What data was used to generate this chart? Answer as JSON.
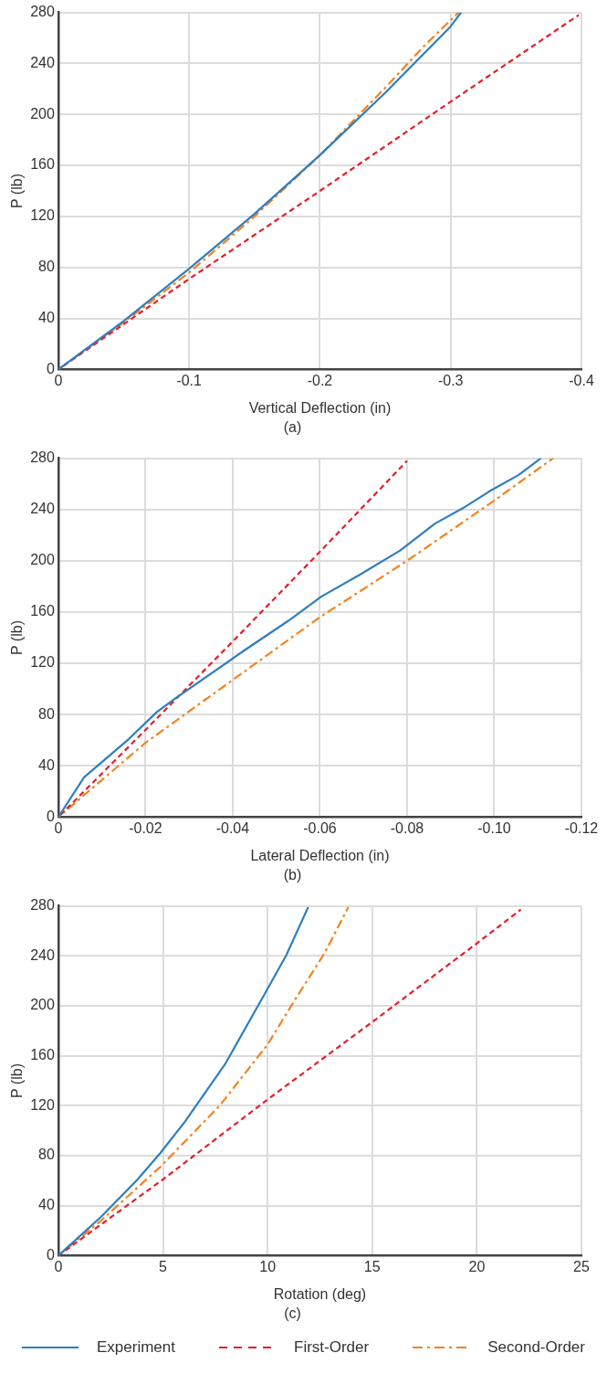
{
  "chart_data": [
    {
      "type": "line",
      "title": "(a)",
      "xlabel": "Vertical Deflection (in)",
      "ylabel": "P (lb)",
      "xlim": [
        0,
        -0.4
      ],
      "xticks": [
        0,
        -0.1,
        -0.2,
        -0.3,
        -0.4
      ],
      "ylim": [
        0,
        280
      ],
      "yticks": [
        0,
        40,
        80,
        120,
        160,
        200,
        240,
        280
      ],
      "grid": true,
      "series": [
        {
          "color": "#2e7ebf",
          "line_style": "solid",
          "x": [
            0,
            -0.05,
            -0.1,
            -0.15,
            -0.2,
            -0.25,
            -0.3,
            -0.308
          ],
          "values": [
            0,
            38,
            79,
            122,
            168,
            217,
            269,
            280
          ]
        },
        {
          "color": "#e41e2b",
          "line_style": "dashed",
          "x": [
            0,
            -0.1,
            -0.2,
            -0.3,
            -0.398
          ],
          "values": [
            0,
            71,
            140,
            210,
            278
          ]
        },
        {
          "color": "#f5821f",
          "line_style": "dashdot",
          "x": [
            0,
            -0.05,
            -0.1,
            -0.15,
            -0.2,
            -0.25,
            -0.28,
            -0.306
          ],
          "values": [
            0,
            37,
            76,
            120,
            168,
            221,
            254,
            280
          ]
        }
      ]
    },
    {
      "type": "line",
      "title": "(b)",
      "xlabel": "Lateral Deflection (in)",
      "ylabel": "P (lb)",
      "xlim": [
        0,
        -0.12
      ],
      "xticks": [
        0,
        -0.02,
        -0.04,
        -0.06,
        -0.08,
        {
          "value": -0.1,
          "label": "-0.10"
        },
        -0.12
      ],
      "ylim": [
        0,
        280
      ],
      "yticks": [
        0,
        40,
        80,
        120,
        160,
        200,
        240,
        280
      ],
      "grid": true,
      "series": [
        {
          "color": "#2e7ebf",
          "line_style": "solid",
          "x": [
            0,
            -0.0059,
            -0.0162,
            -0.0226,
            -0.0274,
            -0.0435,
            -0.0527,
            -0.0603,
            -0.0691,
            -0.0784,
            -0.0864,
            -0.0928,
            -0.0988,
            -0.1056,
            -0.1107
          ],
          "values": [
            0,
            31,
            61,
            82,
            94,
            132,
            153,
            172,
            189,
            208,
            229,
            241,
            254,
            267,
            280
          ]
        },
        {
          "color": "#e41e2b",
          "line_style": "dashed",
          "x": [
            0,
            -0.02,
            -0.04,
            -0.06,
            -0.08
          ],
          "values": [
            0,
            68,
            137,
            207,
            278
          ]
        },
        {
          "color": "#f5821f",
          "line_style": "dashdot",
          "x": [
            0,
            -0.02,
            -0.04,
            -0.06,
            -0.08,
            -0.1,
            -0.1135
          ],
          "values": [
            0,
            58,
            107,
            156,
            200,
            247,
            280
          ]
        }
      ]
    },
    {
      "type": "line",
      "title": "(c)",
      "xlabel": "Rotation (deg)",
      "ylabel": "P (lb)",
      "xlim": [
        0,
        25
      ],
      "xticks": [
        0,
        5,
        10,
        15,
        20,
        25
      ],
      "ylim": [
        0,
        280
      ],
      "yticks": [
        0,
        40,
        80,
        120,
        160,
        200,
        240,
        280
      ],
      "grid": true,
      "legend": "bottom",
      "series": [
        {
          "name": "Experiment",
          "color": "#2e7ebf",
          "line_style": "solid",
          "x": [
            0,
            2.04,
            3.79,
            4.87,
            6.04,
            7.96,
            9.88,
            10.88,
            11.94
          ],
          "values": [
            0,
            31,
            61,
            82,
            107,
            153,
            210,
            240,
            279
          ]
        },
        {
          "name": "First-Order",
          "color": "#e41e2b",
          "line_style": "dashed",
          "x": [
            0,
            5,
            10,
            15,
            20,
            22.1
          ],
          "values": [
            0,
            61,
            125,
            187,
            250,
            277
          ]
        },
        {
          "name": "Second-Order",
          "color": "#f5821f",
          "line_style": "dashdot",
          "x": [
            0,
            2.04,
            4.87,
            7.71,
            10,
            11.39,
            12.72,
            13.86
          ],
          "values": [
            0,
            28,
            71,
            120,
            169,
            207,
            242,
            279
          ]
        }
      ]
    }
  ]
}
